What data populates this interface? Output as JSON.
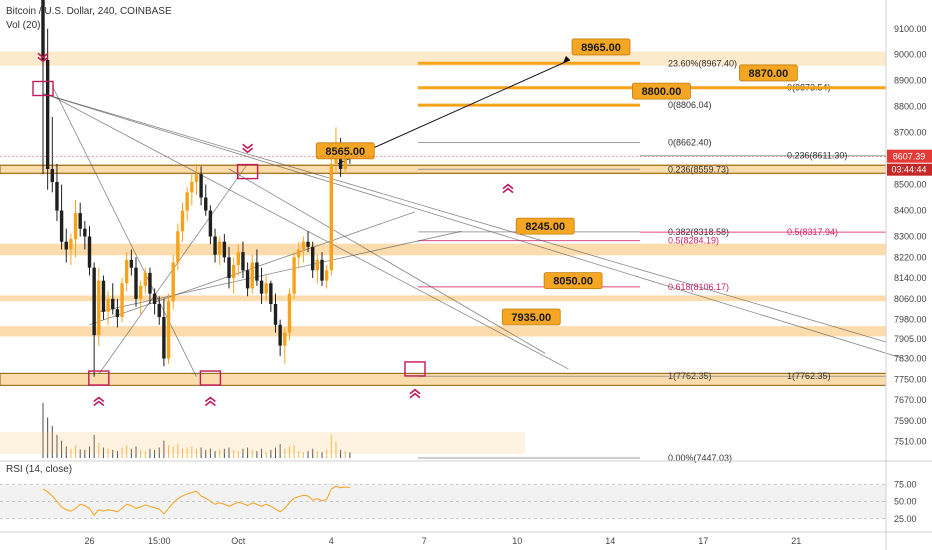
{
  "header": {
    "title": "Bitcoin / U.S. Dollar, 240, COINBASE",
    "volume_label": "Vol (20)"
  },
  "rsi_label": "RSI (14, close)",
  "colors": {
    "up": "#f7a21b",
    "down": "#1f1f1f",
    "zone": "#f9c06a",
    "callout": "#f5a623",
    "marker": "#c2185b",
    "fib_red": "#d81b60",
    "price_badge": "#e53935",
    "rsi": "#f7a21b"
  },
  "chart_data": {
    "type": "candlestick",
    "y_axis": {
      "min": 7447,
      "max": 9180,
      "ticks": [
        "9100.00",
        "9000.00",
        "8900.00",
        "8800.00",
        "8700.00",
        "8600.00",
        "8500.00",
        "8400.00",
        "8300.00",
        "8220.00",
        "8140.00",
        "8060.00",
        "7980.00",
        "7905.00",
        "7830.00",
        "7750.00",
        "7670.00",
        "7590.00",
        "7510.00"
      ]
    },
    "x_axis": {
      "ticks": [
        {
          "label": "26",
          "bar": 10
        },
        {
          "label": "15:00",
          "bar": 25
        },
        {
          "label": "Oct",
          "bar": 42
        },
        {
          "label": "4",
          "bar": 62
        },
        {
          "label": "7",
          "bar": 82
        },
        {
          "label": "10",
          "bar": 102
        },
        {
          "label": "14",
          "bar": 122
        },
        {
          "label": "17",
          "bar": 142
        },
        {
          "label": "21",
          "bar": 162
        }
      ]
    },
    "current_price": "8607.39",
    "countdown": "03:44:44",
    "ohlc": [
      [
        9320,
        9420,
        8540,
        8980
      ],
      [
        8980,
        9100,
        8480,
        8560
      ],
      [
        8560,
        8760,
        8470,
        8510
      ],
      [
        8510,
        8580,
        8360,
        8400
      ],
      [
        8400,
        8500,
        8250,
        8280
      ],
      [
        8280,
        8330,
        8200,
        8250
      ],
      [
        8250,
        8310,
        8190,
        8290
      ],
      [
        8290,
        8440,
        8220,
        8390
      ],
      [
        8390,
        8430,
        8300,
        8330
      ],
      [
        8330,
        8360,
        8250,
        8300
      ],
      [
        8300,
        8340,
        8150,
        8180
      ],
      [
        8180,
        8200,
        7760,
        7920
      ],
      [
        7920,
        8180,
        7880,
        8130
      ],
      [
        8130,
        8150,
        7980,
        8010
      ],
      [
        8010,
        8090,
        7960,
        8060
      ],
      [
        8060,
        8120,
        8000,
        8020
      ],
      [
        8020,
        8060,
        7950,
        7990
      ],
      [
        7990,
        8140,
        7970,
        8120
      ],
      [
        8120,
        8240,
        8090,
        8210
      ],
      [
        8210,
        8250,
        8150,
        8180
      ],
      [
        8180,
        8220,
        8030,
        8060
      ],
      [
        8060,
        8130,
        8000,
        8110
      ],
      [
        8110,
        8180,
        8080,
        8160
      ],
      [
        8160,
        8180,
        8040,
        8080
      ],
      [
        8080,
        8100,
        8000,
        8040
      ],
      [
        8040,
        8070,
        7960,
        7990
      ],
      [
        7990,
        8060,
        7800,
        7830
      ],
      [
        7830,
        8080,
        7810,
        8050
      ],
      [
        8050,
        8230,
        8020,
        8200
      ],
      [
        8200,
        8350,
        8170,
        8320
      ],
      [
        8320,
        8430,
        8280,
        8400
      ],
      [
        8400,
        8490,
        8360,
        8470
      ],
      [
        8470,
        8540,
        8420,
        8510
      ],
      [
        8510,
        8580,
        8460,
        8540
      ],
      [
        8540,
        8570,
        8420,
        8450
      ],
      [
        8450,
        8500,
        8380,
        8400
      ],
      [
        8400,
        8420,
        8270,
        8300
      ],
      [
        8300,
        8330,
        8200,
        8230
      ],
      [
        8230,
        8300,
        8190,
        8280
      ],
      [
        8280,
        8310,
        8200,
        8220
      ],
      [
        8220,
        8260,
        8100,
        8140
      ],
      [
        8140,
        8220,
        8080,
        8190
      ],
      [
        8190,
        8270,
        8150,
        8240
      ],
      [
        8240,
        8280,
        8140,
        8170
      ],
      [
        8170,
        8200,
        8070,
        8100
      ],
      [
        8100,
        8230,
        8080,
        8200
      ],
      [
        8200,
        8250,
        8110,
        8130
      ],
      [
        8130,
        8180,
        8040,
        8080
      ],
      [
        8080,
        8150,
        8050,
        8120
      ],
      [
        8120,
        8130,
        8010,
        8040
      ],
      [
        8040,
        8080,
        7930,
        7960
      ],
      [
        7960,
        7980,
        7840,
        7880
      ],
      [
        7880,
        7950,
        7810,
        7930
      ],
      [
        7930,
        8100,
        7900,
        8080
      ],
      [
        8080,
        8240,
        8060,
        8220
      ],
      [
        8220,
        8280,
        8180,
        8250
      ],
      [
        8250,
        8300,
        8200,
        8280
      ],
      [
        8280,
        8320,
        8240,
        8260
      ],
      [
        8260,
        8280,
        8140,
        8170
      ],
      [
        8170,
        8230,
        8120,
        8210
      ],
      [
        8210,
        8240,
        8110,
        8130
      ],
      [
        8130,
        8190,
        8100,
        8170
      ],
      [
        8170,
        8620,
        8150,
        8580
      ],
      [
        8580,
        8720,
        8540,
        8620
      ],
      [
        8620,
        8680,
        8530,
        8560
      ],
      [
        8560,
        8660,
        8540,
        8610
      ],
      [
        8610,
        8640,
        8580,
        8607
      ]
    ],
    "volume": [
      95,
      70,
      55,
      40,
      30,
      20,
      16,
      22,
      15,
      14,
      20,
      40,
      26,
      18,
      16,
      14,
      12,
      18,
      22,
      16,
      20,
      14,
      12,
      16,
      14,
      18,
      30,
      22,
      20,
      24,
      16,
      18,
      20,
      16,
      18,
      14,
      16,
      12,
      14,
      16,
      18,
      14,
      12,
      16,
      18,
      14,
      12,
      16,
      10,
      14,
      18,
      24,
      16,
      20,
      22,
      12,
      10,
      12,
      16,
      12,
      10,
      14,
      40,
      28,
      14,
      12,
      10
    ],
    "rsi_axis": {
      "ticks": [
        "75.00",
        "50.00",
        "25.00"
      ]
    },
    "rsi": [
      68,
      64,
      58,
      50,
      42,
      38,
      36,
      40,
      46,
      44,
      40,
      30,
      38,
      36,
      38,
      37,
      35,
      40,
      46,
      44,
      40,
      42,
      45,
      43,
      41,
      39,
      32,
      40,
      48,
      54,
      58,
      61,
      63,
      65,
      58,
      55,
      50,
      46,
      48,
      46,
      43,
      46,
      49,
      47,
      44,
      48,
      46,
      43,
      46,
      43,
      39,
      35,
      40,
      48,
      55,
      57,
      59,
      58,
      52,
      54,
      51,
      53,
      68,
      72,
      70,
      71,
      70
    ],
    "zones": [
      {
        "value": 8985,
        "height": 55
      },
      {
        "value": 8559,
        "height": 38
      },
      {
        "value": 8250,
        "height": 45
      },
      {
        "value": 8062,
        "height": 22
      },
      {
        "value": 7935,
        "height": 40
      },
      {
        "value": 7750,
        "height": 45
      }
    ],
    "fib_left": [
      {
        "label": "23.60%(8967.40)",
        "value": 8967
      },
      {
        "label": "0(8806.04)",
        "value": 8806
      },
      {
        "label": "0(8662.40)",
        "value": 8662
      },
      {
        "label": "0.236(8559.73)",
        "value": 8559
      },
      {
        "label": "0.382(8318.58)",
        "value": 8318
      },
      {
        "label": "0.5(8284.19)",
        "value": 8284,
        "red": true
      },
      {
        "label": "0.618(8106.17)",
        "value": 8106,
        "red": true
      },
      {
        "label": "1(7762.35)",
        "value": 7762
      },
      {
        "label": "0.00%(7447.03)",
        "value": 7447
      }
    ],
    "fib_right": [
      {
        "label": "0(8873.54)",
        "value": 8873
      },
      {
        "label": "0.236(8611.30)",
        "value": 8611
      },
      {
        "label": "0.5(8317.94)",
        "value": 8317,
        "red": true
      },
      {
        "label": "1(7762.35)",
        "value": 7762
      }
    ],
    "callouts": [
      {
        "label": "8965.00",
        "value": 9030,
        "bar": 120
      },
      {
        "label": "8870.00",
        "value": 8930,
        "bar": 156
      },
      {
        "label": "8800.00",
        "value": 8860,
        "bar": 133
      },
      {
        "label": "8565.00",
        "value": 8630,
        "bar": 65
      },
      {
        "label": "8245.00",
        "value": 8340,
        "bar": 108
      },
      {
        "label": "8050.00",
        "value": 8130,
        "bar": 114
      },
      {
        "label": "7935.00",
        "value": 7990,
        "bar": 105
      }
    ]
  }
}
